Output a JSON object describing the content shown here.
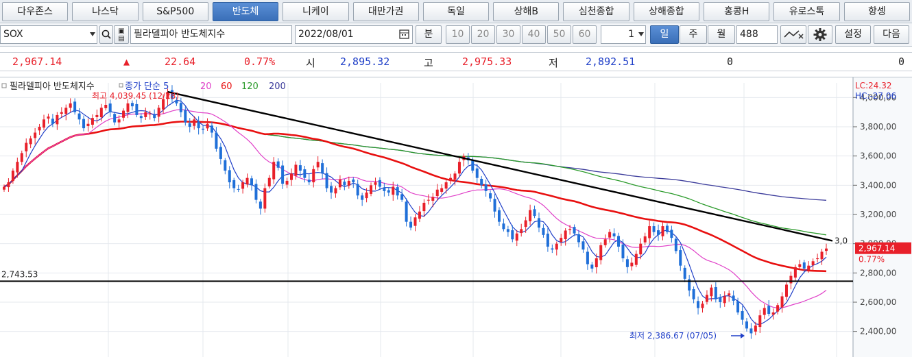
{
  "tabs": [
    {
      "label": "다우존스"
    },
    {
      "label": "나스닥"
    },
    {
      "label": "S&P500"
    },
    {
      "label": "반도체",
      "active": true
    },
    {
      "label": "니케이"
    },
    {
      "label": "대만가권"
    },
    {
      "label": "독일"
    },
    {
      "label": "상해B"
    },
    {
      "label": "심천종합"
    },
    {
      "label": "상해종합"
    },
    {
      "label": "홍콩H"
    },
    {
      "label": "유로스톡"
    },
    {
      "label": "항셍"
    }
  ],
  "toolbar": {
    "symbol": "SOX",
    "index_name": "필라델피아 반도체지수",
    "date": "2022/08/01",
    "minute_label": "분",
    "periods": [
      "10",
      "20",
      "30",
      "40",
      "50",
      "60"
    ],
    "interval_value": "1",
    "day_label": "일",
    "week_label": "주",
    "month_label": "월",
    "count": "488",
    "settings_label": "설정",
    "next_label": "다음",
    "icons": [
      "dropdown-icon",
      "search-icon",
      "info-icon",
      "calendar-icon",
      "draw-tool-icon",
      "gear-icon"
    ]
  },
  "quote": {
    "price": "2,967.14",
    "change_arrow": "▲",
    "change": "22.64",
    "change_pct": "0.77%",
    "open_label": "시",
    "open": "2,895.32",
    "high_label": "고",
    "high": "2,975.33",
    "low_label": "저",
    "low": "2,892.51",
    "volume": "0",
    "volume2": "0"
  },
  "colors": {
    "up": "#e8202a",
    "down": "#1f6fd8",
    "ma5": "#1f3fc8",
    "ma20": "#e040c8",
    "ma60": "#e81010",
    "ma120": "#2a9a2a",
    "ma200": "#3a3a9a"
  },
  "chart_data": {
    "type": "candlestick",
    "title": "필라델피아 반도체지수",
    "legend": [
      {
        "name": "종가 단순",
        "periods": "5",
        "color": "#1f3fc8"
      },
      {
        "name": "",
        "periods": "20",
        "color": "#e040c8"
      },
      {
        "name": "",
        "periods": "60",
        "color": "#e81010"
      },
      {
        "name": "",
        "periods": "120",
        "color": "#2a9a2a"
      },
      {
        "name": "",
        "periods": "200",
        "color": "#3a3a9a"
      }
    ],
    "ylim": [
      2300,
      4100
    ],
    "y_ticks": [
      "4,000,00",
      "3,800,00",
      "3,600,00",
      "3,400,00",
      "3,200,00",
      "3,000,00",
      "2,800,00",
      "2,600,00",
      "2,400,00"
    ],
    "y_tick_values": [
      4000,
      3800,
      3600,
      3400,
      3200,
      3000,
      2800,
      2600,
      2400
    ],
    "max_label": "최고 4,039.45 (12/28)",
    "min_label": "최저 2,386.67 (07/05)",
    "hline_label": "2,743.53",
    "hline_value": 2743.53,
    "trendline_end_label": "3,0",
    "lc_label": "LC:24.32",
    "hc_label": "HC:-27.06",
    "last_price_label": "2,967.14",
    "last_pct_label": "0.77%",
    "last_price": 2967.14,
    "closes": [
      3390,
      3420,
      3500,
      3560,
      3620,
      3690,
      3720,
      3760,
      3800,
      3850,
      3870,
      3820,
      3880,
      3900,
      3930,
      3960,
      3900,
      3850,
      3790,
      3820,
      3860,
      3880,
      3930,
      3950,
      3900,
      3830,
      3850,
      3910,
      3960,
      3940,
      3880,
      3860,
      3900,
      3890,
      3860,
      3930,
      3990,
      4039,
      3990,
      3960,
      3900,
      3830,
      3800,
      3850,
      3790,
      3780,
      3820,
      3760,
      3650,
      3580,
      3500,
      3420,
      3380,
      3370,
      3420,
      3450,
      3400,
      3300,
      3240,
      3380,
      3450,
      3560,
      3520,
      3410,
      3430,
      3480,
      3540,
      3500,
      3450,
      3420,
      3510,
      3560,
      3480,
      3380,
      3350,
      3380,
      3440,
      3400,
      3430,
      3420,
      3330,
      3300,
      3350,
      3400,
      3420,
      3390,
      3360,
      3350,
      3390,
      3330,
      3300,
      3150,
      3110,
      3180,
      3220,
      3280,
      3300,
      3320,
      3370,
      3380,
      3420,
      3450,
      3480,
      3560,
      3600,
      3570,
      3500,
      3450,
      3400,
      3360,
      3310,
      3220,
      3150,
      3100,
      3080,
      3030,
      3070,
      3100,
      3160,
      3230,
      3190,
      3110,
      3060,
      2980,
      2960,
      3000,
      3040,
      3090,
      3100,
      3070,
      3010,
      2960,
      2860,
      2830,
      2900,
      2990,
      3030,
      3080,
      3050,
      2980,
      2900,
      2840,
      2870,
      2930,
      3000,
      3050,
      3120,
      3080,
      3060,
      3120,
      3080,
      3040,
      2950,
      2850,
      2760,
      2680,
      2620,
      2560,
      2590,
      2650,
      2700,
      2620,
      2600,
      2640,
      2660,
      2610,
      2530,
      2480,
      2420,
      2387,
      2440,
      2510,
      2560,
      2520,
      2530,
      2580,
      2640,
      2720,
      2780,
      2840,
      2860,
      2830,
      2850,
      2880,
      2900,
      2945,
      2967
    ]
  }
}
